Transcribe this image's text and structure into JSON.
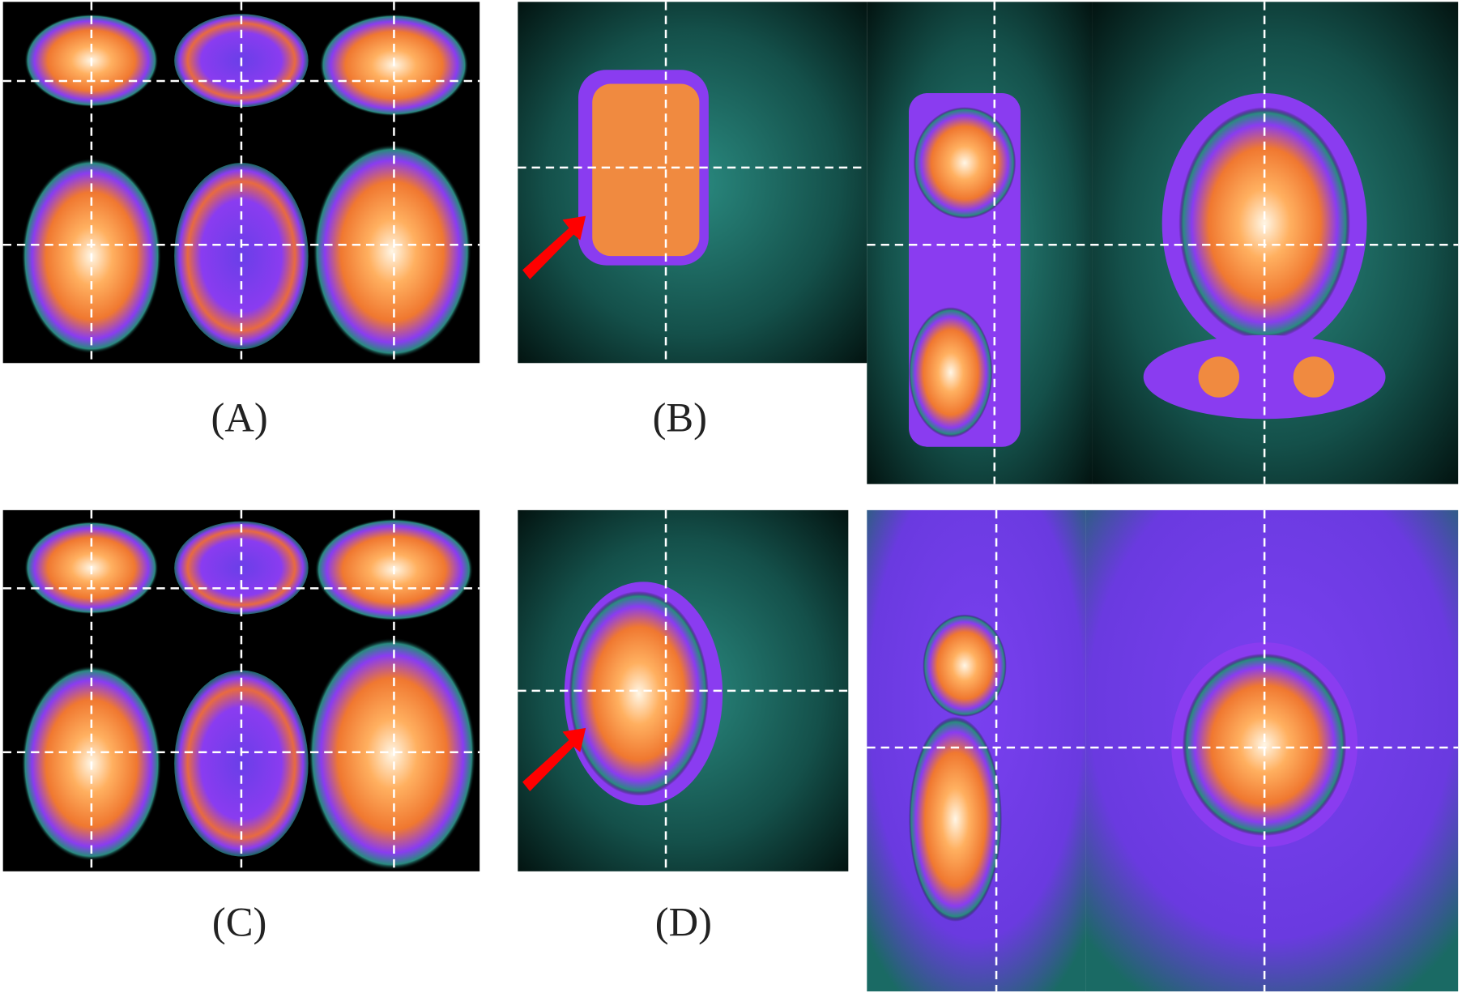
{
  "panels": [
    {
      "label": "(A)"
    },
    {
      "label": "(B)"
    },
    {
      "label": "(C)"
    },
    {
      "label": "(D)"
    }
  ]
}
